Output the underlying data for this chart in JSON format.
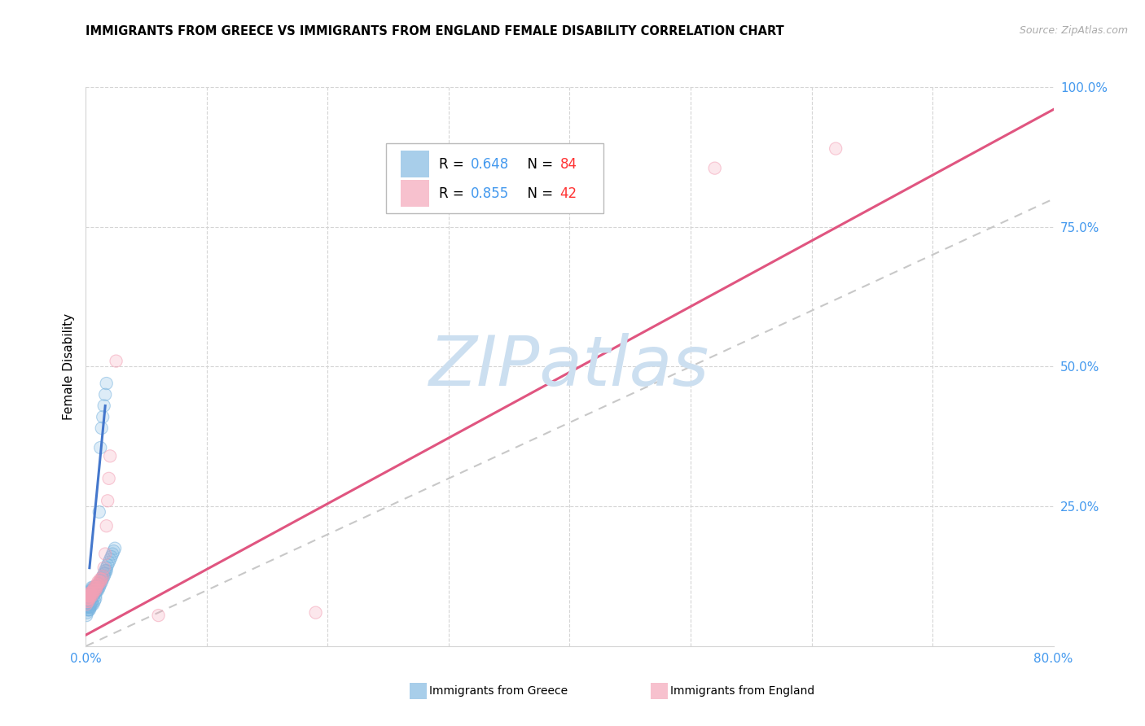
{
  "title": "IMMIGRANTS FROM GREECE VS IMMIGRANTS FROM ENGLAND FEMALE DISABILITY CORRELATION CHART",
  "source": "Source: ZipAtlas.com",
  "ylabel_left": "Female Disability",
  "xlim": [
    0.0,
    0.8
  ],
  "ylim": [
    0.0,
    1.0
  ],
  "greece_R": 0.648,
  "greece_N": 84,
  "england_R": 0.855,
  "england_N": 42,
  "greece_color": "#7ab5e0",
  "england_color": "#f4a0b5",
  "greece_line_color": "#4477cc",
  "england_line_color": "#e05580",
  "reference_line_color": "#c8c8c8",
  "watermark_color": "#ccdff0",
  "right_tick_color": "#4499ee",
  "x_tick_color": "#4499ee",
  "greece_scatter_x": [
    0.0005,
    0.001,
    0.001,
    0.0015,
    0.0015,
    0.002,
    0.002,
    0.002,
    0.0025,
    0.0025,
    0.003,
    0.003,
    0.003,
    0.003,
    0.0035,
    0.0035,
    0.004,
    0.004,
    0.004,
    0.004,
    0.005,
    0.005,
    0.005,
    0.005,
    0.006,
    0.006,
    0.006,
    0.006,
    0.007,
    0.007,
    0.007,
    0.008,
    0.008,
    0.008,
    0.009,
    0.009,
    0.01,
    0.01,
    0.01,
    0.011,
    0.011,
    0.012,
    0.012,
    0.013,
    0.013,
    0.014,
    0.014,
    0.015,
    0.015,
    0.016,
    0.016,
    0.017,
    0.017,
    0.018,
    0.019,
    0.02,
    0.021,
    0.022,
    0.023,
    0.024,
    0.0005,
    0.001,
    0.0015,
    0.002,
    0.0025,
    0.003,
    0.003,
    0.004,
    0.004,
    0.005,
    0.005,
    0.006,
    0.007,
    0.008,
    0.008,
    0.009,
    0.01,
    0.011,
    0.012,
    0.013,
    0.014,
    0.015,
    0.016,
    0.017
  ],
  "greece_scatter_y": [
    0.07,
    0.08,
    0.09,
    0.085,
    0.095,
    0.08,
    0.09,
    0.095,
    0.085,
    0.09,
    0.08,
    0.085,
    0.09,
    0.095,
    0.09,
    0.095,
    0.085,
    0.09,
    0.095,
    0.1,
    0.09,
    0.095,
    0.1,
    0.105,
    0.09,
    0.095,
    0.1,
    0.105,
    0.095,
    0.1,
    0.105,
    0.095,
    0.1,
    0.105,
    0.1,
    0.105,
    0.1,
    0.105,
    0.11,
    0.105,
    0.11,
    0.11,
    0.115,
    0.115,
    0.12,
    0.12,
    0.125,
    0.125,
    0.13,
    0.13,
    0.135,
    0.135,
    0.14,
    0.145,
    0.15,
    0.155,
    0.16,
    0.165,
    0.17,
    0.175,
    0.055,
    0.06,
    0.065,
    0.07,
    0.065,
    0.065,
    0.07,
    0.07,
    0.075,
    0.075,
    0.08,
    0.075,
    0.08,
    0.085,
    0.09,
    0.1,
    0.11,
    0.24,
    0.355,
    0.39,
    0.41,
    0.43,
    0.45,
    0.47
  ],
  "england_scatter_x": [
    0.0005,
    0.001,
    0.001,
    0.0015,
    0.0015,
    0.002,
    0.002,
    0.002,
    0.0025,
    0.003,
    0.003,
    0.003,
    0.004,
    0.004,
    0.005,
    0.005,
    0.006,
    0.006,
    0.007,
    0.007,
    0.008,
    0.008,
    0.009,
    0.009,
    0.01,
    0.01,
    0.011,
    0.012,
    0.012,
    0.013,
    0.014,
    0.015,
    0.016,
    0.017,
    0.018,
    0.019,
    0.02,
    0.025,
    0.06,
    0.19,
    0.52,
    0.62
  ],
  "england_scatter_y": [
    0.075,
    0.08,
    0.085,
    0.085,
    0.09,
    0.08,
    0.085,
    0.09,
    0.09,
    0.085,
    0.09,
    0.095,
    0.09,
    0.095,
    0.09,
    0.095,
    0.095,
    0.1,
    0.1,
    0.105,
    0.1,
    0.105,
    0.105,
    0.11,
    0.11,
    0.115,
    0.115,
    0.115,
    0.12,
    0.12,
    0.125,
    0.14,
    0.165,
    0.215,
    0.26,
    0.3,
    0.34,
    0.51,
    0.055,
    0.06,
    0.855,
    0.89
  ],
  "blue_line_x0": 0.003,
  "blue_line_y0": 0.14,
  "blue_line_x1": 0.016,
  "blue_line_y1": 0.43,
  "pink_line_x0": 0.0,
  "pink_line_y0": 0.02,
  "pink_line_x1": 0.8,
  "pink_line_y1": 0.96
}
